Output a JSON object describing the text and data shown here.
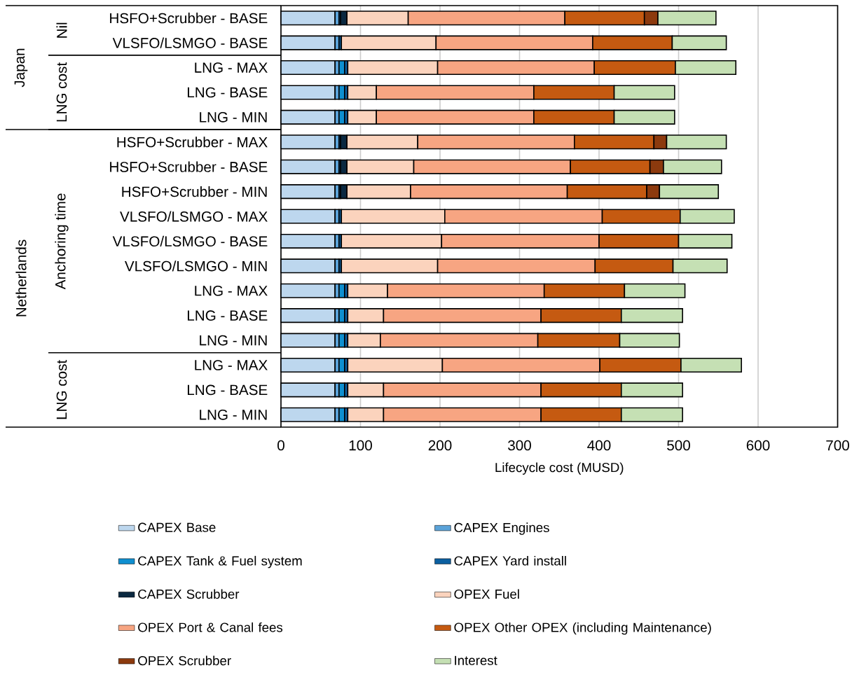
{
  "chart_data": {
    "type": "bar",
    "orientation": "horizontal",
    "stacked": true,
    "categories": [
      "HSFO+Scrubber - BASE",
      "VLSFO/LSMGO - BASE",
      "LNG - MAX",
      "LNG - BASE",
      "LNG - MIN",
      "HSFO+Scrubber - MAX",
      "HSFO+Scrubber - BASE",
      "HSFO+Scrubber - MIN",
      "VLSFO/LSMGO - MAX",
      "VLSFO/LSMGO - BASE",
      "VLSFO/LSMGO - MIN",
      "LNG - MAX",
      "LNG - BASE",
      "LNG - MIN",
      "LNG - MAX",
      "LNG - BASE",
      "LNG - MIN"
    ],
    "series": [
      {
        "name": "CAPEX Base",
        "color": "#bdd7ee",
        "values": [
          68,
          68,
          68,
          68,
          68,
          68,
          68,
          68,
          68,
          68,
          68,
          68,
          68,
          68,
          68,
          68,
          68
        ]
      },
      {
        "name": "CAPEX Engines",
        "color": "#5ba3d9",
        "values": [
          5,
          5,
          5,
          5,
          5,
          5,
          5,
          5,
          5,
          5,
          5,
          5,
          5,
          5,
          5,
          5,
          5
        ]
      },
      {
        "name": "CAPEX Tank & Fuel system",
        "color": "#0f8fd0",
        "values": [
          null,
          null,
          7,
          7,
          7,
          null,
          null,
          null,
          null,
          null,
          null,
          7,
          7,
          7,
          7,
          7,
          7
        ]
      },
      {
        "name": "CAPEX Yard install",
        "color": "#0b5fa0",
        "values": [
          2,
          3,
          4,
          4,
          4,
          2,
          2,
          2,
          3,
          3,
          3,
          4,
          4,
          4,
          4,
          4,
          4
        ]
      },
      {
        "name": "CAPEX Scrubber",
        "color": "#0a2840",
        "values": [
          8,
          null,
          null,
          null,
          null,
          8,
          8,
          8,
          null,
          null,
          null,
          null,
          null,
          null,
          null,
          null,
          null
        ]
      },
      {
        "name": "OPEX Fuel",
        "color": "#fbd3bd",
        "values": [
          77,
          119,
          113,
          36,
          36,
          89,
          84,
          80,
          130,
          126,
          121,
          50,
          45,
          41,
          119,
          45,
          45
        ]
      },
      {
        "name": "OPEX Port & Canal fees",
        "color": "#f7a582",
        "values": [
          197,
          197,
          197,
          198,
          198,
          197,
          197,
          197,
          198,
          198,
          198,
          197,
          198,
          198,
          198,
          198,
          198
        ]
      },
      {
        "name": "OPEX Other OPEX (including Maintenance)",
        "color": "#c55a11",
        "values": [
          100,
          100,
          102,
          101,
          101,
          100,
          100,
          100,
          98,
          100,
          98,
          101,
          101,
          103,
          102,
          101,
          101
        ]
      },
      {
        "name": "OPEX Scrubber",
        "color": "#8c3a0e",
        "values": [
          17,
          null,
          null,
          null,
          null,
          16,
          17,
          16,
          null,
          null,
          null,
          null,
          null,
          null,
          null,
          null,
          null
        ]
      },
      {
        "name": "Interest",
        "color": "#c5e0b4",
        "values": [
          73,
          68,
          76,
          76,
          76,
          75,
          73,
          74,
          68,
          67,
          68,
          76,
          77,
          75,
          76,
          77,
          77
        ]
      }
    ],
    "xlabel": "Lifecycle cost (MUSD)",
    "xlim": [
      0,
      700
    ],
    "xticks": [
      0,
      100,
      200,
      300,
      400,
      500,
      600,
      700
    ],
    "grid": "x",
    "legend": "bottom",
    "annotations": [
      "Japan",
      "Nil",
      "LNG cost",
      "Netherlands",
      "Anchoring time",
      "LNG cost"
    ]
  }
}
